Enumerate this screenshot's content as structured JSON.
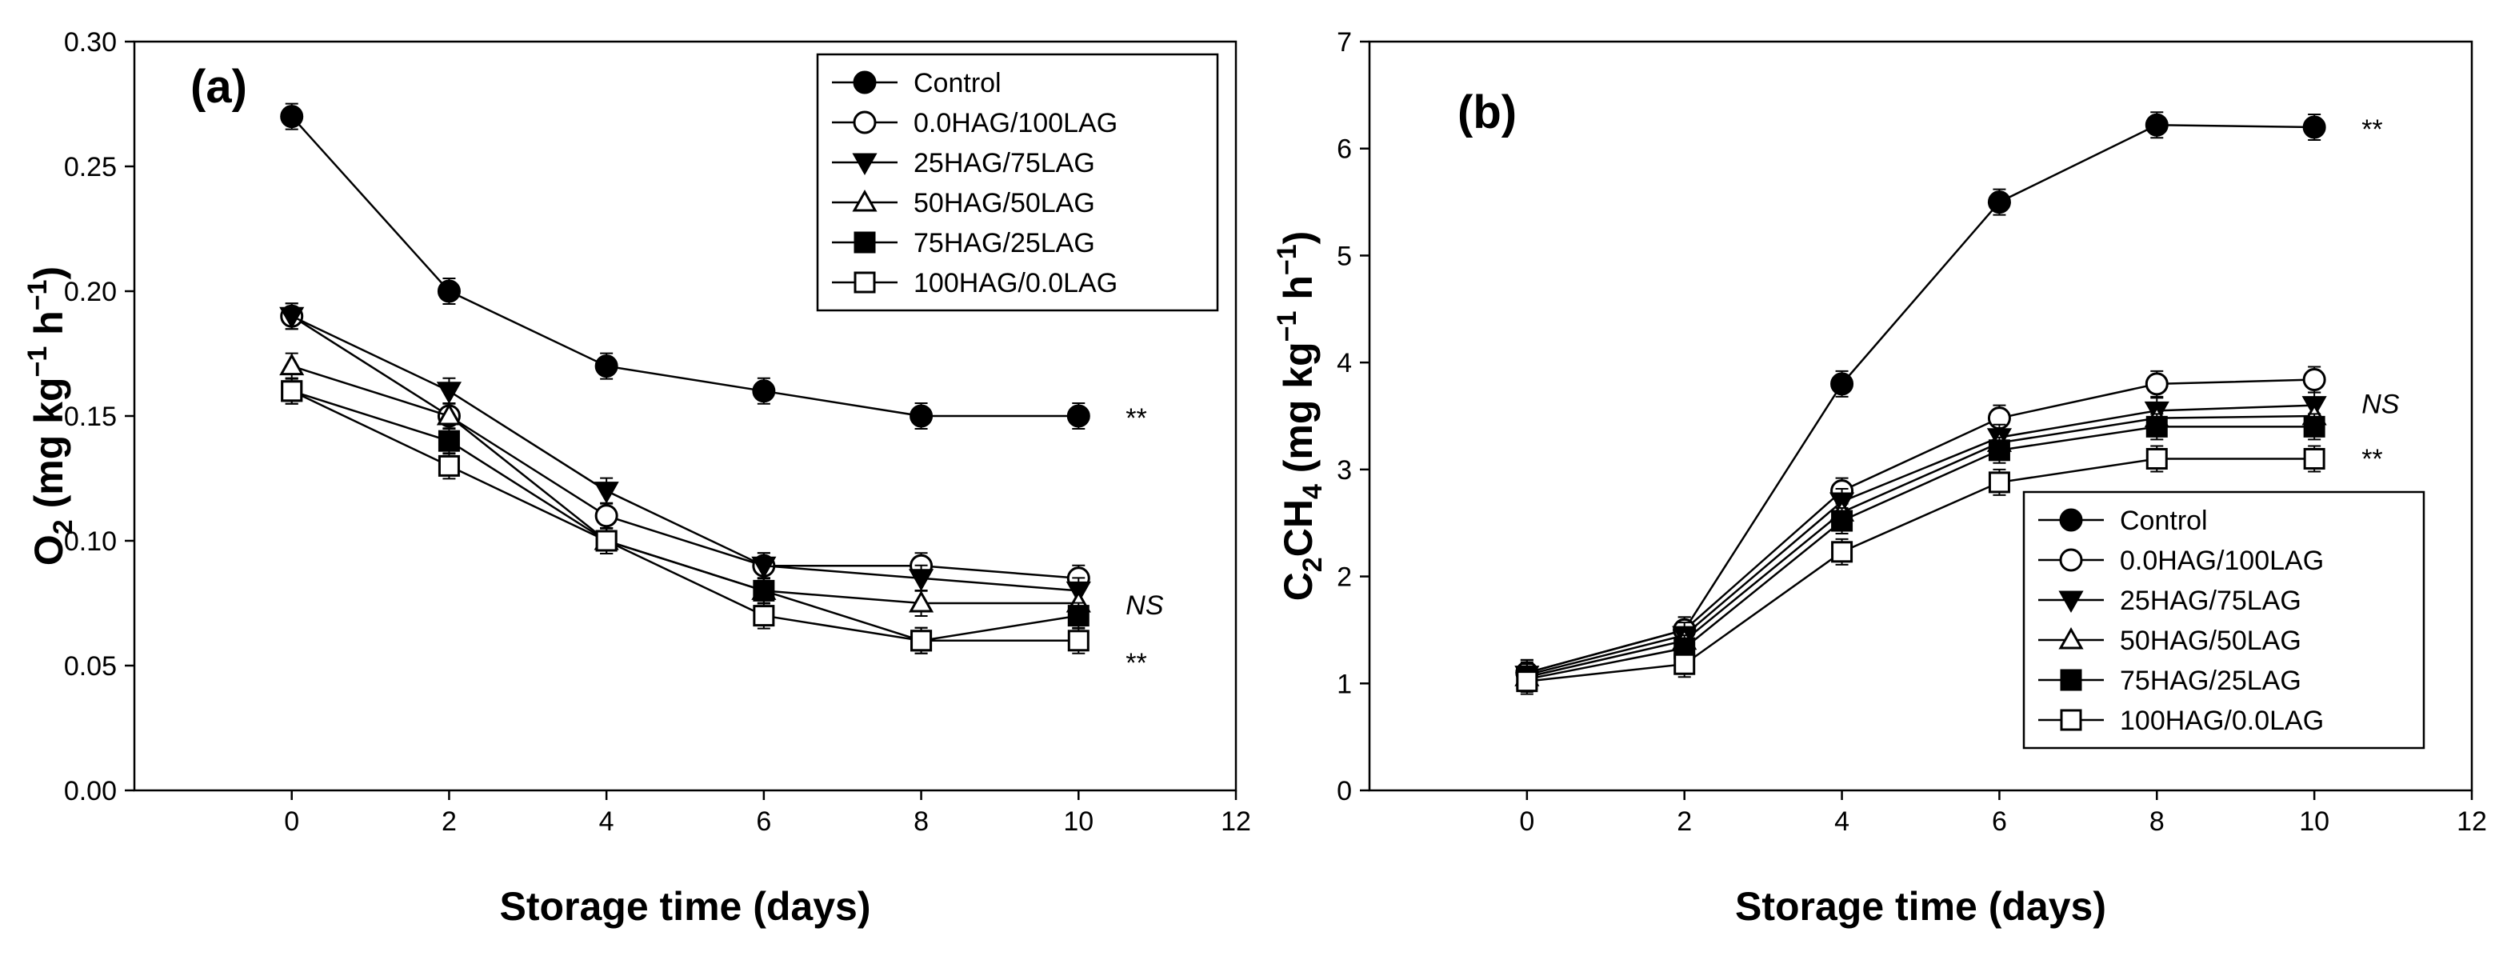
{
  "chart_data": [
    {
      "type": "line",
      "panel_label": "(a)",
      "ylabel_parts": [
        "O",
        "2",
        " (mg kg",
        "−1",
        " h",
        "−1",
        ")"
      ],
      "xlabel": "Storage time (days)",
      "xlim": [
        -2,
        12
      ],
      "ylim": [
        0,
        0.3
      ],
      "xticks": [
        0,
        2,
        4,
        6,
        8,
        10,
        12
      ],
      "yticks": [
        0,
        0.05,
        0.1,
        0.15,
        0.2,
        0.25,
        0.3
      ],
      "ytick_labels": [
        "0.00",
        "0.05",
        "0.10",
        "0.15",
        "0.20",
        "0.25",
        "0.30"
      ],
      "legend_position": "top-right",
      "x": [
        0,
        2,
        4,
        6,
        8,
        10
      ],
      "series": [
        {
          "name": "Control",
          "marker": "circle-filled",
          "values": [
            0.27,
            0.2,
            0.17,
            0.16,
            0.15,
            0.15
          ]
        },
        {
          "name": "0.0HAG/100LAG",
          "marker": "circle-open",
          "values": [
            0.19,
            0.15,
            0.11,
            0.09,
            0.09,
            0.085
          ]
        },
        {
          "name": "25HAG/75LAG",
          "marker": "triangle-down-filled",
          "values": [
            0.19,
            0.16,
            0.12,
            0.09,
            0.085,
            0.08
          ]
        },
        {
          "name": "50HAG/50LAG",
          "marker": "triangle-up-open",
          "values": [
            0.17,
            0.15,
            0.1,
            0.08,
            0.075,
            0.075
          ]
        },
        {
          "name": "75HAG/25LAG",
          "marker": "square-filled",
          "values": [
            0.16,
            0.14,
            0.1,
            0.08,
            0.06,
            0.07
          ]
        },
        {
          "name": "100HAG/0.0LAG",
          "marker": "square-open",
          "values": [
            0.16,
            0.13,
            0.1,
            0.07,
            0.06,
            0.06
          ]
        }
      ],
      "annotations": [
        {
          "text": "**",
          "x": 10.6,
          "y": 0.15,
          "italic": false
        },
        {
          "text": "NS",
          "x": 10.6,
          "y": 0.075,
          "italic": true
        },
        {
          "text": "**",
          "x": 10.6,
          "y": 0.052,
          "italic": false
        }
      ]
    },
    {
      "type": "line",
      "panel_label": "(b)",
      "ylabel_parts": [
        "C",
        "2",
        "CH",
        "4",
        " (mg kg",
        "−1",
        " h",
        "−1",
        ")"
      ],
      "xlabel": "Storage time (days)",
      "xlim": [
        -2,
        12
      ],
      "ylim": [
        0,
        7
      ],
      "xticks": [
        0,
        2,
        4,
        6,
        8,
        10,
        12
      ],
      "yticks": [
        0,
        1,
        2,
        3,
        4,
        5,
        6,
        7
      ],
      "ytick_labels": [
        "0",
        "1",
        "2",
        "3",
        "4",
        "5",
        "6",
        "7"
      ],
      "legend_position": "bottom-right",
      "x": [
        0,
        2,
        4,
        6,
        8,
        10
      ],
      "series": [
        {
          "name": "Control",
          "marker": "circle-filled",
          "values": [
            1.1,
            1.5,
            3.8,
            5.5,
            6.22,
            6.2
          ]
        },
        {
          "name": "0.0HAG/100LAG",
          "marker": "circle-open",
          "values": [
            1.1,
            1.5,
            2.8,
            3.48,
            3.8,
            3.84
          ]
        },
        {
          "name": "25HAG/75LAG",
          "marker": "triangle-down-filled",
          "values": [
            1.08,
            1.45,
            2.7,
            3.3,
            3.55,
            3.6
          ]
        },
        {
          "name": "50HAG/50LAG",
          "marker": "triangle-up-open",
          "values": [
            1.06,
            1.4,
            2.6,
            3.25,
            3.48,
            3.5
          ]
        },
        {
          "name": "75HAG/25LAG",
          "marker": "square-filled",
          "values": [
            1.04,
            1.33,
            2.52,
            3.18,
            3.4,
            3.4
          ]
        },
        {
          "name": "100HAG/0.0LAG",
          "marker": "square-open",
          "values": [
            1.02,
            1.18,
            2.23,
            2.88,
            3.1,
            3.1
          ]
        }
      ],
      "annotations": [
        {
          "text": "**",
          "x": 10.6,
          "y": 6.2,
          "italic": false
        },
        {
          "text": "NS",
          "x": 10.6,
          "y": 3.63,
          "italic": true
        },
        {
          "text": "**",
          "x": 10.6,
          "y": 3.12,
          "italic": false
        }
      ]
    }
  ]
}
